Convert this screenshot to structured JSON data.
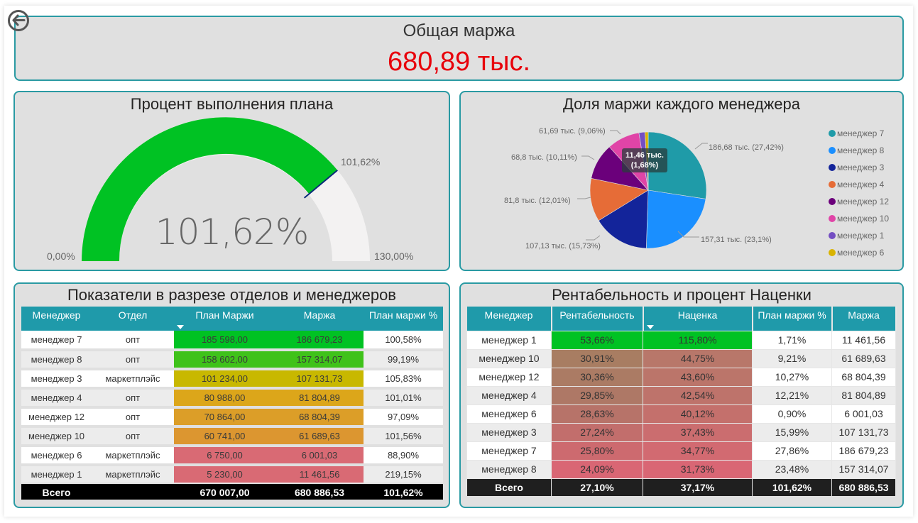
{
  "nav": {
    "back_icon": "back-arrow-circle-icon"
  },
  "kpi": {
    "title": "Общая маржа",
    "value": "680,89 тыс.",
    "value_color": "#e8000b"
  },
  "gauge": {
    "title": "Процент выполнения плана",
    "value_label": "101,62%",
    "min_label": "0,00%",
    "max_label": "130,00%",
    "target_label": "101,62%",
    "min": 0,
    "max": 130,
    "value": 101.62,
    "fill_color": "#00c223",
    "track_color": "#f3f2f2",
    "target_color": "#0a2a7a"
  },
  "pie": {
    "title": "Доля маржи каждого менеджера",
    "tooltip": {
      "value": "11,46 тыс.",
      "percent": "(1,68%)"
    },
    "labels": {
      "m7": "186,68 тыс. (27,42%)",
      "m8": "157,31 тыс. (23,1%)",
      "m3": "107,13 тыс. (15,73%)",
      "m4": "81,8 тыс. (12,01%)",
      "m12": "68,8 тыс. (10,11%)",
      "m10": "61,69 тыс. (9,06%)"
    },
    "legend": [
      {
        "label": "менеджер 7",
        "color": "#1f9ba8"
      },
      {
        "label": "менеджер 8",
        "color": "#1a8fff"
      },
      {
        "label": "менеджер 3",
        "color": "#13249a"
      },
      {
        "label": "менеджер 4",
        "color": "#e66c37"
      },
      {
        "label": "менеджер 12",
        "color": "#6b007b"
      },
      {
        "label": "менеджер 10",
        "color": "#e044a7"
      },
      {
        "label": "менеджер 1",
        "color": "#744ec2"
      },
      {
        "label": "менеджер 6",
        "color": "#d9b300"
      }
    ]
  },
  "chart_data": {
    "type": "pie",
    "title": "Доля маржи каждого менеджера",
    "categories": [
      "менеджер 7",
      "менеджер 8",
      "менеджер 3",
      "менеджер 4",
      "менеджер 12",
      "менеджер 10",
      "менеджер 1",
      "менеджер 6"
    ],
    "values": [
      186.68,
      157.31,
      107.13,
      81.8,
      68.8,
      61.69,
      11.46,
      6.0
    ],
    "percents": [
      27.42,
      23.1,
      15.73,
      12.01,
      10.11,
      9.06,
      1.68,
      0.88
    ],
    "unit": "тыс.",
    "legend_position": "right"
  },
  "table1": {
    "title": "Показатели в разрезе отделов и менеджеров",
    "headers": [
      "Менеджер",
      "Отдел",
      "План Маржи",
      "Маржа",
      "План маржи %"
    ],
    "rows": [
      {
        "manager": "менеджер 7",
        "dept": "опт",
        "plan": "185 598,00",
        "margin": "186 679,23",
        "pct": "100,58%",
        "color": "#00c223"
      },
      {
        "manager": "менеджер 8",
        "dept": "опт",
        "plan": "158 602,00",
        "margin": "157 314,07",
        "pct": "99,19%",
        "color": "#3fc21a"
      },
      {
        "manager": "менеджер 3",
        "dept": "маркетплэйс",
        "plan": "101 234,00",
        "margin": "107 131,73",
        "pct": "105,83%",
        "color": "#c8b800"
      },
      {
        "manager": "менеджер 4",
        "dept": "опт",
        "plan": "80 988,00",
        "margin": "81 804,89",
        "pct": "101,01%",
        "color": "#dca61a"
      },
      {
        "manager": "менеджер 12",
        "dept": "опт",
        "plan": "70 864,00",
        "margin": "68 804,39",
        "pct": "97,09%",
        "color": "#dc9e28"
      },
      {
        "manager": "менеджер 10",
        "dept": "опт",
        "plan": "60 741,00",
        "margin": "61 689,63",
        "pct": "101,56%",
        "color": "#dc9630"
      },
      {
        "manager": "менеджер 6",
        "dept": "маркетплэйс",
        "plan": "6 750,00",
        "margin": "6 001,03",
        "pct": "88,90%",
        "color": "#d96a74"
      },
      {
        "manager": "менеджер 1",
        "dept": "маркетплэйс",
        "plan": "5 230,00",
        "margin": "11 461,56",
        "pct": "219,15%",
        "color": "#d96a74"
      }
    ],
    "total": {
      "label": "Всего",
      "dept": "",
      "plan": "670 007,00",
      "margin": "680 886,53",
      "pct": "101,62%"
    }
  },
  "table2": {
    "title": "Рентабельность и процент Наценки",
    "headers": [
      "Менеджер",
      "Рентабельность",
      "Наценка",
      "План маржи %",
      "Маржа"
    ],
    "rows": [
      {
        "manager": "менеджер 1",
        "rent": "53,66%",
        "markup": "115,80%",
        "pct": "1,71%",
        "margin": "11 461,56",
        "c1": "#00c223",
        "c2": "#00c223"
      },
      {
        "manager": "менеджер 10",
        "rent": "30,91%",
        "markup": "44,75%",
        "pct": "9,21%",
        "margin": "61 689,63",
        "c1": "#a87d62",
        "c2": "#b8776a"
      },
      {
        "manager": "менеджер 12",
        "rent": "30,36%",
        "markup": "43,60%",
        "pct": "10,27%",
        "margin": "68 804,39",
        "c1": "#ab7b64",
        "c2": "#bb756a"
      },
      {
        "manager": "менеджер 4",
        "rent": "29,85%",
        "markup": "42,54%",
        "pct": "12,21%",
        "margin": "81 804,89",
        "c1": "#ae7866",
        "c2": "#be736b"
      },
      {
        "manager": "менеджер 6",
        "rent": "28,63%",
        "markup": "40,12%",
        "pct": "0,90%",
        "margin": "6 001,03",
        "c1": "#b77369",
        "c2": "#c4706c"
      },
      {
        "manager": "менеджер 3",
        "rent": "27,24%",
        "markup": "37,43%",
        "pct": "15,99%",
        "margin": "107 131,73",
        "c1": "#c26e6c",
        "c2": "#cb6d6f"
      },
      {
        "manager": "менеджер 7",
        "rent": "25,80%",
        "markup": "34,77%",
        "pct": "27,86%",
        "margin": "186 679,23",
        "c1": "#cd6a6f",
        "c2": "#d26a71"
      },
      {
        "manager": "менеджер 8",
        "rent": "24,09%",
        "markup": "31,73%",
        "pct": "23,48%",
        "margin": "157 314,07",
        "c1": "#d96674",
        "c2": "#d96674"
      }
    ],
    "total": {
      "label": "Всего",
      "rent": "27,10%",
      "markup": "37,17%",
      "pct": "101,62%",
      "margin": "680 886,53"
    }
  }
}
